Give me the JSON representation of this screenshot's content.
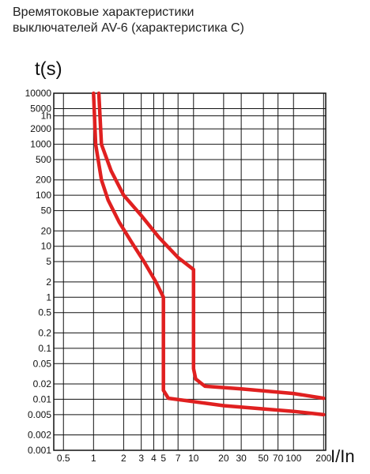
{
  "title": "Времятоковые характеристики\nвыключателей AV-6 (характеристика C)",
  "chart_data": {
    "type": "line",
    "title": "Времятоковые характеристики выключателей AV-6 (характеристика C)",
    "xlabel": "I/In",
    "ylabel": "t(s)",
    "xscale": "log",
    "yscale": "log",
    "xlim": [
      0.4,
      210
    ],
    "ylim": [
      0.001,
      10000
    ],
    "grid": true,
    "x_ticks": [
      {
        "value": 0.5,
        "label": "0.5"
      },
      {
        "value": 1,
        "label": "1"
      },
      {
        "value": 2,
        "label": "2"
      },
      {
        "value": 3,
        "label": "3"
      },
      {
        "value": 4,
        "label": "4"
      },
      {
        "value": 5,
        "label": "5"
      },
      {
        "value": 7,
        "label": "7"
      },
      {
        "value": 10,
        "label": "10"
      },
      {
        "value": 20,
        "label": "20"
      },
      {
        "value": 30,
        "label": "30"
      },
      {
        "value": 50,
        "label": "50"
      },
      {
        "value": 70,
        "label": "70"
      },
      {
        "value": 100,
        "label": "100"
      },
      {
        "value": 200,
        "label": "200"
      }
    ],
    "y_ticks": [
      {
        "value": 10000,
        "label": "10000"
      },
      {
        "value": 5000,
        "label": "5000"
      },
      {
        "value": 3600,
        "label": "1h"
      },
      {
        "value": 2000,
        "label": "2000"
      },
      {
        "value": 1000,
        "label": "1000"
      },
      {
        "value": 500,
        "label": "500"
      },
      {
        "value": 200,
        "label": "200"
      },
      {
        "value": 100,
        "label": "100"
      },
      {
        "value": 50,
        "label": "50"
      },
      {
        "value": 20,
        "label": "20"
      },
      {
        "value": 10,
        "label": "10"
      },
      {
        "value": 5,
        "label": "5"
      },
      {
        "value": 2,
        "label": "2"
      },
      {
        "value": 1,
        "label": "1"
      },
      {
        "value": 0.5,
        "label": "0.5"
      },
      {
        "value": 0.2,
        "label": "0.2"
      },
      {
        "value": 0.1,
        "label": "0.1"
      },
      {
        "value": 0.05,
        "label": "0.05"
      },
      {
        "value": 0.02,
        "label": "0.02"
      },
      {
        "value": 0.01,
        "label": "0.01"
      },
      {
        "value": 0.005,
        "label": "0.005"
      },
      {
        "value": 0.002,
        "label": "0.002"
      },
      {
        "value": 0.001,
        "label": "0.001"
      }
    ],
    "series": [
      {
        "color": "#e02020",
        "points": [
          [
            1.0,
            10000
          ],
          [
            1.05,
            1000
          ],
          [
            1.2,
            200
          ],
          [
            1.4,
            80
          ],
          [
            1.8,
            30
          ],
          [
            2.4,
            12
          ],
          [
            3.2,
            5
          ],
          [
            4.2,
            2
          ],
          [
            5.0,
            1
          ],
          [
            5.0,
            0.015
          ],
          [
            5.6,
            0.0105
          ],
          [
            20,
            0.0075
          ],
          [
            100,
            0.0058
          ],
          [
            200,
            0.005
          ]
        ]
      },
      {
        "color": "#e02020",
        "points": [
          [
            1.13,
            10000
          ],
          [
            1.2,
            1000
          ],
          [
            1.5,
            300
          ],
          [
            2.0,
            100
          ],
          [
            3.0,
            40
          ],
          [
            4.5,
            15
          ],
          [
            7.0,
            6
          ],
          [
            10,
            3.5
          ],
          [
            10,
            0.04
          ],
          [
            10.5,
            0.025
          ],
          [
            13,
            0.018
          ],
          [
            30,
            0.016
          ],
          [
            100,
            0.013
          ],
          [
            200,
            0.0105
          ]
        ]
      }
    ]
  }
}
